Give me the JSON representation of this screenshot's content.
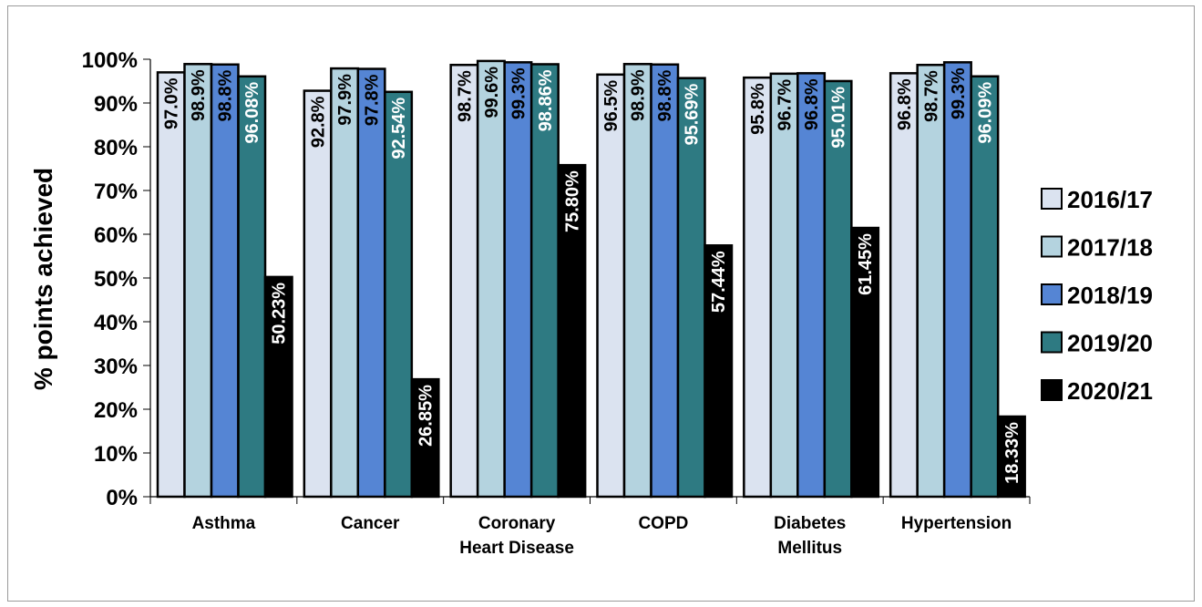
{
  "chart_data": {
    "type": "bar",
    "title": "",
    "xlabel": "",
    "ylabel": "% points achieved",
    "ylim": [
      0,
      100
    ],
    "y_ticks": [
      "0%",
      "10%",
      "20%",
      "30%",
      "40%",
      "50%",
      "60%",
      "70%",
      "80%",
      "90%",
      "100%"
    ],
    "categories": [
      [
        "Asthma"
      ],
      [
        "Cancer"
      ],
      [
        "Coronary",
        "Heart Disease"
      ],
      [
        "COPD"
      ],
      [
        "Diabetes",
        "Mellitus"
      ],
      [
        "Hypertension"
      ]
    ],
    "grid": false,
    "legend_position": "right",
    "series": [
      {
        "name": "2016/17",
        "color": "#dbe3f0",
        "label_color": "#000000",
        "values": [
          97.0,
          92.8,
          98.7,
          96.5,
          95.8,
          96.8
        ],
        "labels": [
          "97.0%",
          "92.8%",
          "98.7%",
          "96.5%",
          "95.8%",
          "96.8%"
        ]
      },
      {
        "name": "2017/18",
        "color": "#b4d3df",
        "label_color": "#000000",
        "values": [
          98.9,
          97.9,
          99.6,
          98.9,
          96.7,
          98.7
        ],
        "labels": [
          "98.9%",
          "97.9%",
          "99.6%",
          "98.9%",
          "96.7%",
          "98.7%"
        ]
      },
      {
        "name": "2018/19",
        "color": "#5585d4",
        "label_color": "#000000",
        "values": [
          98.8,
          97.8,
          99.3,
          98.8,
          96.8,
          99.3
        ],
        "labels": [
          "98.8%",
          "97.8%",
          "99.3%",
          "98.8%",
          "96.8%",
          "99.3%"
        ]
      },
      {
        "name": "2019/20",
        "color": "#2e7a82",
        "label_color": "#ffffff",
        "values": [
          96.08,
          92.54,
          98.86,
          95.69,
          95.01,
          96.09
        ],
        "labels": [
          "96.08%",
          "92.54%",
          "98.86%",
          "95.69%",
          "95.01%",
          "96.09%"
        ]
      },
      {
        "name": "2020/21",
        "color": "#000000",
        "label_color": "#ffffff",
        "values": [
          50.23,
          26.85,
          75.8,
          57.44,
          61.45,
          18.33
        ],
        "labels": [
          "50.23%",
          "26.85%",
          "75.80%",
          "57.44%",
          "61.45%",
          "18.33%"
        ]
      }
    ]
  }
}
